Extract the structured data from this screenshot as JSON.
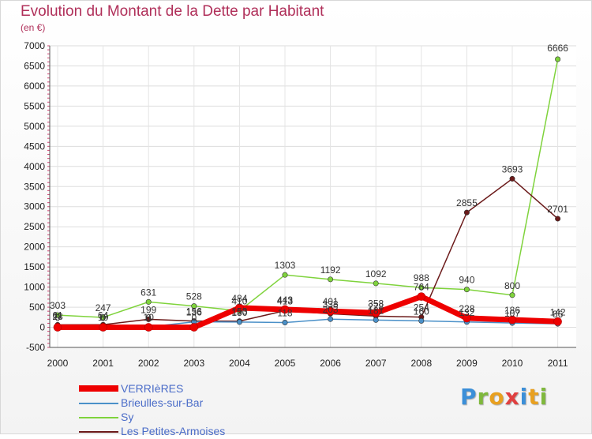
{
  "chart_data": {
    "type": "line",
    "title": "Evolution du Montant de la Dette par Habitant",
    "subtitle": "(en €)",
    "x": [
      "2000",
      "2001",
      "2002",
      "2003",
      "2004",
      "2005",
      "2006",
      "2007",
      "2008",
      "2009",
      "2010",
      "2011"
    ],
    "ylim": [
      -500,
      7000
    ],
    "yticks": [
      -500,
      0,
      500,
      1000,
      1500,
      2000,
      2500,
      3000,
      3500,
      4000,
      4500,
      5000,
      5500,
      6000,
      6500,
      7000
    ],
    "grid": true,
    "series": [
      {
        "name": "VERRIèRES",
        "color": "#ee0000",
        "values": [
          0,
          0,
          0,
          0,
          484,
          443,
          401,
          358,
          764,
          228,
          186,
          142
        ]
      },
      {
        "name": "Brieulles-sur-Bar",
        "color": "#4a90c8",
        "values": [
          28,
          10,
          10,
          136,
          130,
          118,
          203,
          181,
          160,
          132,
          107,
          86
        ]
      },
      {
        "name": "Sy",
        "color": "#7fd33c",
        "values": [
          303,
          247,
          631,
          528,
          410,
          1303,
          1192,
          1092,
          988,
          940,
          800,
          6666
        ]
      },
      {
        "name": "Les Petites-Armoises",
        "color": "#6b1a1a",
        "values": [
          61,
          64,
          199,
          156,
          153,
          413,
          338,
          278,
          254,
          2855,
          3693,
          2701
        ]
      }
    ]
  },
  "logo_text": "Proxiti"
}
